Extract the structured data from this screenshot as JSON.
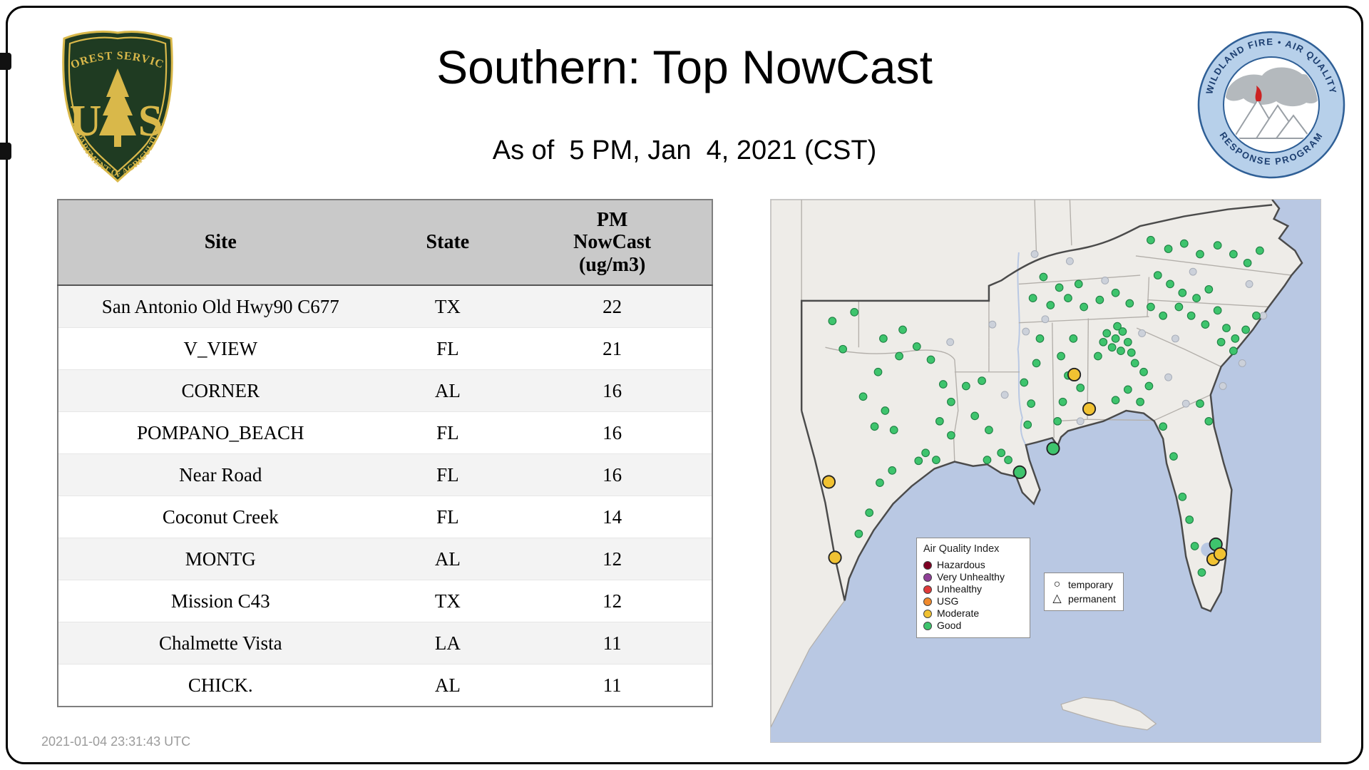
{
  "header": {
    "title": "Southern: Top NowCast",
    "subtitle": "As of  5 PM, Jan  4, 2021 (CST)"
  },
  "logos": {
    "forest_service": {
      "top_text": "FOREST SERVICE",
      "letters": [
        "U",
        "S"
      ],
      "bottom_text": "DEPARTMENT OF AGRICULTURE"
    },
    "wfaqrp": {
      "top_text": "WILDLAND FIRE • AIR QUALITY",
      "bottom_text": "RESPONSE PROGRAM"
    }
  },
  "table": {
    "headers": [
      "Site",
      "State"
    ],
    "header_pm_lines": [
      "PM",
      "NowCast",
      "(ug/m3)"
    ],
    "rows": [
      {
        "site": "San Antonio Old Hwy90 C677",
        "state": "TX",
        "value": "22"
      },
      {
        "site": "V_VIEW",
        "state": "FL",
        "value": "21"
      },
      {
        "site": "CORNER",
        "state": "AL",
        "value": "16"
      },
      {
        "site": "POMPANO_BEACH",
        "state": "FL",
        "value": "16"
      },
      {
        "site": "Near Road",
        "state": "FL",
        "value": "16"
      },
      {
        "site": "Coconut Creek",
        "state": "FL",
        "value": "14"
      },
      {
        "site": "MONTG",
        "state": "AL",
        "value": "12"
      },
      {
        "site": "Mission C43",
        "state": "TX",
        "value": "12"
      },
      {
        "site": "Chalmette Vista",
        "state": "LA",
        "value": "11"
      },
      {
        "site": "CHICK.",
        "state": "AL",
        "value": "11"
      }
    ]
  },
  "map": {
    "colors": {
      "good": "#3ec46d",
      "moderate": "#f1c232",
      "inactive": "#ccd1da"
    },
    "legend": {
      "title": "Air Quality Index",
      "items": [
        {
          "label": "Hazardous",
          "color": "#7e0023"
        },
        {
          "label": "Very Unhealthy",
          "color": "#8f3f97"
        },
        {
          "label": "Unhealthy",
          "color": "#e03a3a"
        },
        {
          "label": "USG",
          "color": "#f08a2d"
        },
        {
          "label": "Moderate",
          "color": "#f1c232"
        },
        {
          "label": "Good",
          "color": "#3ec46d"
        }
      ]
    },
    "symbol_legend": {
      "items": [
        {
          "symbol": "circle",
          "label": "temporary"
        },
        {
          "symbol": "triangle",
          "label": "permanent"
        }
      ]
    },
    "markers": {
      "good": [
        [
          70,
          138
        ],
        [
          95,
          128
        ],
        [
          82,
          170
        ],
        [
          128,
          158
        ],
        [
          150,
          148
        ],
        [
          166,
          167
        ],
        [
          182,
          182
        ],
        [
          146,
          178
        ],
        [
          122,
          196
        ],
        [
          105,
          224
        ],
        [
          130,
          240
        ],
        [
          118,
          258
        ],
        [
          140,
          262
        ],
        [
          176,
          288
        ],
        [
          188,
          296
        ],
        [
          168,
          297
        ],
        [
          138,
          308
        ],
        [
          124,
          322
        ],
        [
          100,
          380
        ],
        [
          112,
          356
        ],
        [
          196,
          210
        ],
        [
          205,
          230
        ],
        [
          192,
          252
        ],
        [
          205,
          268
        ],
        [
          222,
          212
        ],
        [
          240,
          206
        ],
        [
          232,
          246
        ],
        [
          248,
          262
        ],
        [
          262,
          288
        ],
        [
          246,
          296
        ],
        [
          270,
          296
        ],
        [
          288,
          208
        ],
        [
          296,
          232
        ],
        [
          292,
          256
        ],
        [
          302,
          186
        ],
        [
          306,
          158
        ],
        [
          330,
          178
        ],
        [
          338,
          200
        ],
        [
          332,
          230
        ],
        [
          344,
          158
        ],
        [
          326,
          252
        ],
        [
          352,
          214
        ],
        [
          298,
          112
        ],
        [
          318,
          120
        ],
        [
          338,
          112
        ],
        [
          356,
          122
        ],
        [
          374,
          114
        ],
        [
          392,
          106
        ],
        [
          408,
          118
        ],
        [
          350,
          96
        ],
        [
          328,
          100
        ],
        [
          310,
          88
        ],
        [
          382,
          152
        ],
        [
          392,
          158
        ],
        [
          400,
          150
        ],
        [
          388,
          168
        ],
        [
          398,
          172
        ],
        [
          406,
          162
        ],
        [
          378,
          162
        ],
        [
          394,
          144
        ],
        [
          410,
          174
        ],
        [
          372,
          178
        ],
        [
          414,
          186
        ],
        [
          424,
          196
        ],
        [
          430,
          212
        ],
        [
          406,
          216
        ],
        [
          392,
          228
        ],
        [
          420,
          230
        ],
        [
          440,
          86
        ],
        [
          454,
          96
        ],
        [
          468,
          106
        ],
        [
          484,
          112
        ],
        [
          498,
          102
        ],
        [
          464,
          122
        ],
        [
          478,
          132
        ],
        [
          494,
          142
        ],
        [
          508,
          126
        ],
        [
          518,
          146
        ],
        [
          528,
          158
        ],
        [
          446,
          132
        ],
        [
          432,
          122
        ],
        [
          512,
          162
        ],
        [
          526,
          172
        ],
        [
          540,
          148
        ],
        [
          552,
          132
        ],
        [
          432,
          46
        ],
        [
          452,
          56
        ],
        [
          470,
          50
        ],
        [
          488,
          62
        ],
        [
          508,
          52
        ],
        [
          526,
          62
        ],
        [
          542,
          72
        ],
        [
          556,
          58
        ],
        [
          446,
          258
        ],
        [
          458,
          292
        ],
        [
          468,
          338
        ],
        [
          476,
          364
        ],
        [
          482,
          394
        ],
        [
          490,
          424
        ],
        [
          498,
          252
        ],
        [
          488,
          232
        ]
      ],
      "inactive": [
        [
          252,
          142
        ],
        [
          312,
          136
        ],
        [
          422,
          152
        ],
        [
          544,
          96
        ],
        [
          560,
          132
        ],
        [
          480,
          82
        ],
        [
          204,
          162
        ],
        [
          266,
          222
        ],
        [
          352,
          252
        ],
        [
          452,
          202
        ],
        [
          514,
          212
        ],
        [
          472,
          232
        ],
        [
          300,
          62
        ],
        [
          340,
          70
        ],
        [
          536,
          186
        ],
        [
          460,
          158
        ],
        [
          380,
          92
        ],
        [
          290,
          150
        ]
      ],
      "good_large": [
        [
          321,
          283
        ],
        [
          283,
          310
        ],
        [
          506,
          392
        ]
      ],
      "moderate_large": [
        [
          345,
          199
        ],
        [
          362,
          238
        ],
        [
          66,
          321
        ],
        [
          73,
          407
        ],
        [
          503,
          409
        ],
        [
          511,
          403
        ]
      ]
    }
  },
  "footer": {
    "timestamp": "2021-01-04 23:31:43 UTC"
  }
}
